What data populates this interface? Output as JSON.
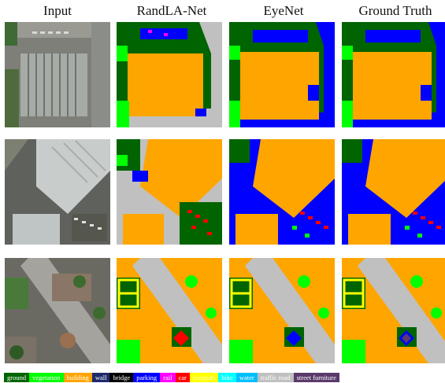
{
  "columns": [
    "Input",
    "RandLA-Net",
    "EyeNet",
    "Ground Truth"
  ],
  "legend": [
    {
      "label": "ground",
      "color": "#006400",
      "text": "#ffffff"
    },
    {
      "label": "vegetation",
      "color": "#00ff00",
      "text": "#ffffff"
    },
    {
      "label": "building",
      "color": "#ffa500",
      "text": "#ffffff"
    },
    {
      "label": "wall",
      "color": "#1f2a6b",
      "text": "#ffffff"
    },
    {
      "label": "bridge",
      "color": "#000000",
      "text": "#ffffff"
    },
    {
      "label": "parking",
      "color": "#0000ff",
      "text": "#ffffff"
    },
    {
      "label": "rail",
      "color": "#ff00ff",
      "text": "#ffffff"
    },
    {
      "label": "car",
      "color": "#ff0000",
      "text": "#ffffff"
    },
    {
      "label": "footpath",
      "color": "#ffff00",
      "text": "#ffffcc"
    },
    {
      "label": "bike",
      "color": "#00ffff",
      "text": "#ffffff"
    },
    {
      "label": "water",
      "color": "#00bfff",
      "text": "#ffffff"
    },
    {
      "label": "traffic road",
      "color": "#c0c0c0",
      "text": "#ffffff"
    },
    {
      "label": "street furniture",
      "color": "#5a3a6a",
      "text": "#ffffff"
    }
  ]
}
